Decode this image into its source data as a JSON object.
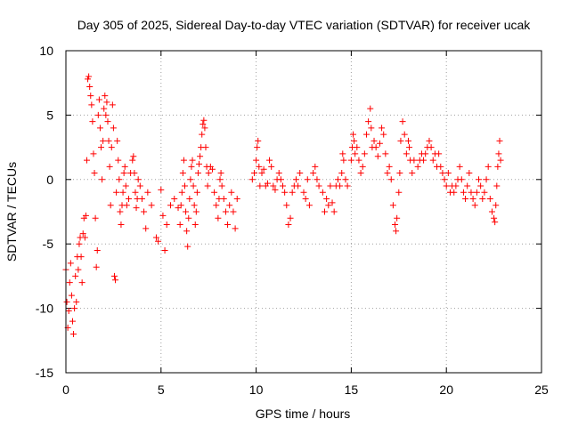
{
  "chart_data": {
    "type": "scatter",
    "title": "Day 305 of 2025, Sidereal Day-to-day VTEC variation (SDTVAR) for receiver ucak",
    "xlabel": "GPS time / hours",
    "ylabel": "SDTVAR / TECUs",
    "xlim": [
      0,
      25
    ],
    "ylim": [
      -15,
      10
    ],
    "xticks": [
      0,
      5,
      10,
      15,
      20,
      25
    ],
    "yticks": [
      -15,
      -10,
      -5,
      0,
      5,
      10
    ],
    "grid": true,
    "marker": "+",
    "color": "#ff0000",
    "series": [
      {
        "name": "SDTVAR",
        "points": [
          [
            0.0,
            -7.0
          ],
          [
            0.05,
            -9.5
          ],
          [
            0.1,
            -11.5
          ],
          [
            0.15,
            -10.2
          ],
          [
            0.2,
            -8.0
          ],
          [
            0.25,
            -6.5
          ],
          [
            0.3,
            -9.0
          ],
          [
            0.35,
            -11.0
          ],
          [
            0.4,
            -12.0
          ],
          [
            0.45,
            -10.0
          ],
          [
            0.5,
            -7.5
          ],
          [
            0.55,
            -9.5
          ],
          [
            0.6,
            -6.0
          ],
          [
            0.65,
            -7.0
          ],
          [
            0.7,
            -5.0
          ],
          [
            0.75,
            -4.5
          ],
          [
            0.8,
            -6.0
          ],
          [
            0.85,
            -8.0
          ],
          [
            0.9,
            -4.2
          ],
          [
            0.95,
            -3.0
          ],
          [
            1.0,
            -4.5
          ],
          [
            1.05,
            -2.8
          ],
          [
            1.1,
            1.5
          ],
          [
            1.15,
            7.8
          ],
          [
            1.2,
            8.0
          ],
          [
            1.25,
            7.2
          ],
          [
            1.3,
            6.5
          ],
          [
            1.35,
            5.8
          ],
          [
            1.4,
            4.5
          ],
          [
            1.45,
            2.0
          ],
          [
            1.5,
            0.5
          ],
          [
            1.55,
            -3.0
          ],
          [
            1.6,
            -6.8
          ],
          [
            1.65,
            -5.5
          ],
          [
            1.7,
            5.0
          ],
          [
            1.75,
            6.2
          ],
          [
            1.8,
            4.0
          ],
          [
            1.85,
            2.5
          ],
          [
            1.9,
            0.0
          ],
          [
            1.95,
            3.0
          ],
          [
            2.0,
            5.5
          ],
          [
            2.05,
            6.5
          ],
          [
            2.1,
            5.0
          ],
          [
            2.15,
            6.0
          ],
          [
            2.2,
            4.5
          ],
          [
            2.25,
            3.0
          ],
          [
            2.3,
            1.0
          ],
          [
            2.35,
            -2.0
          ],
          [
            2.4,
            2.5
          ],
          [
            2.45,
            5.8
          ],
          [
            2.5,
            4.0
          ],
          [
            2.55,
            -7.5
          ],
          [
            2.6,
            -7.8
          ],
          [
            2.65,
            -1.0
          ],
          [
            2.7,
            3.0
          ],
          [
            2.75,
            1.5
          ],
          [
            2.8,
            0.0
          ],
          [
            2.85,
            -2.5
          ],
          [
            2.9,
            -3.5
          ],
          [
            2.95,
            -2.0
          ],
          [
            3.0,
            -1.0
          ],
          [
            3.05,
            0.5
          ],
          [
            3.1,
            1.0
          ],
          [
            3.15,
            -0.5
          ],
          [
            3.2,
            -2.0
          ],
          [
            3.3,
            -1.5
          ],
          [
            3.4,
            0.5
          ],
          [
            3.5,
            1.5
          ],
          [
            3.55,
            1.8
          ],
          [
            3.6,
            0.5
          ],
          [
            3.65,
            -1.0
          ],
          [
            3.7,
            -2.2
          ],
          [
            3.75,
            -1.5
          ],
          [
            3.8,
            0.0
          ],
          [
            3.9,
            -0.5
          ],
          [
            4.0,
            -1.5
          ],
          [
            4.1,
            -2.5
          ],
          [
            4.2,
            -3.8
          ],
          [
            4.3,
            -1.0
          ],
          [
            4.5,
            -2.0
          ],
          [
            4.75,
            -4.5
          ],
          [
            4.85,
            -4.8
          ],
          [
            5.0,
            -0.8
          ],
          [
            5.1,
            -2.8
          ],
          [
            5.2,
            -5.5
          ],
          [
            5.3,
            -3.5
          ],
          [
            5.5,
            -2.0
          ],
          [
            5.7,
            -1.5
          ],
          [
            5.9,
            -2.2
          ],
          [
            6.0,
            -3.5
          ],
          [
            6.05,
            -2.0
          ],
          [
            6.1,
            -1.0
          ],
          [
            6.15,
            0.5
          ],
          [
            6.2,
            1.5
          ],
          [
            6.25,
            -0.5
          ],
          [
            6.3,
            -2.5
          ],
          [
            6.35,
            -4.0
          ],
          [
            6.4,
            -5.2
          ],
          [
            6.45,
            -3.0
          ],
          [
            6.5,
            -1.5
          ],
          [
            6.55,
            0.0
          ],
          [
            6.6,
            1.0
          ],
          [
            6.65,
            1.5
          ],
          [
            6.7,
            -0.5
          ],
          [
            6.75,
            -2.0
          ],
          [
            6.8,
            -3.5
          ],
          [
            6.85,
            -2.5
          ],
          [
            6.9,
            -1.0
          ],
          [
            6.95,
            0.5
          ],
          [
            7.0,
            1.2
          ],
          [
            7.05,
            1.8
          ],
          [
            7.1,
            2.5
          ],
          [
            7.15,
            3.5
          ],
          [
            7.2,
            4.3
          ],
          [
            7.25,
            4.6
          ],
          [
            7.3,
            4.0
          ],
          [
            7.35,
            2.5
          ],
          [
            7.4,
            1.0
          ],
          [
            7.45,
            -0.5
          ],
          [
            7.5,
            0.5
          ],
          [
            7.6,
            1.0
          ],
          [
            7.7,
            0.8
          ],
          [
            7.8,
            -1.0
          ],
          [
            7.9,
            -2.0
          ],
          [
            8.0,
            -3.0
          ],
          [
            8.05,
            -1.5
          ],
          [
            8.1,
            0.0
          ],
          [
            8.15,
            0.5
          ],
          [
            8.2,
            -0.5
          ],
          [
            8.3,
            -1.5
          ],
          [
            8.4,
            -2.5
          ],
          [
            8.5,
            -3.5
          ],
          [
            8.6,
            -2.0
          ],
          [
            8.7,
            -1.0
          ],
          [
            8.8,
            -2.5
          ],
          [
            8.9,
            -3.8
          ],
          [
            9.0,
            -1.5
          ],
          [
            9.8,
            0.0
          ],
          [
            9.9,
            0.5
          ],
          [
            10.0,
            1.5
          ],
          [
            10.05,
            2.5
          ],
          [
            10.1,
            3.0
          ],
          [
            10.15,
            1.0
          ],
          [
            10.2,
            -0.5
          ],
          [
            10.3,
            0.5
          ],
          [
            10.4,
            0.8
          ],
          [
            10.5,
            -0.5
          ],
          [
            10.6,
            -0.3
          ],
          [
            10.7,
            1.5
          ],
          [
            10.8,
            1.0
          ],
          [
            10.9,
            -0.5
          ],
          [
            11.0,
            -0.8
          ],
          [
            11.1,
            0.0
          ],
          [
            11.2,
            0.5
          ],
          [
            11.3,
            0.0
          ],
          [
            11.4,
            -0.5
          ],
          [
            11.5,
            -1.0
          ],
          [
            11.6,
            -2.0
          ],
          [
            11.7,
            -3.5
          ],
          [
            11.8,
            -3.0
          ],
          [
            11.9,
            -1.0
          ],
          [
            12.0,
            -0.5
          ],
          [
            12.1,
            0.0
          ],
          [
            12.2,
            -0.5
          ],
          [
            12.3,
            0.5
          ],
          [
            12.5,
            -1.0
          ],
          [
            12.6,
            -1.5
          ],
          [
            12.7,
            0.0
          ],
          [
            12.8,
            -2.0
          ],
          [
            13.0,
            0.5
          ],
          [
            13.1,
            1.0
          ],
          [
            13.2,
            0.0
          ],
          [
            13.3,
            -0.5
          ],
          [
            13.5,
            -1.0
          ],
          [
            13.6,
            -2.5
          ],
          [
            13.7,
            -1.5
          ],
          [
            13.8,
            -2.0
          ],
          [
            13.9,
            -0.5
          ],
          [
            14.0,
            -1.8
          ],
          [
            14.1,
            -2.5
          ],
          [
            14.2,
            -0.5
          ],
          [
            14.3,
            0.0
          ],
          [
            14.4,
            -0.5
          ],
          [
            14.5,
            0.5
          ],
          [
            14.55,
            2.0
          ],
          [
            14.6,
            1.5
          ],
          [
            14.7,
            0.0
          ],
          [
            14.8,
            -0.5
          ],
          [
            15.0,
            1.5
          ],
          [
            15.05,
            2.5
          ],
          [
            15.1,
            3.5
          ],
          [
            15.15,
            3.0
          ],
          [
            15.2,
            2.0
          ],
          [
            15.3,
            2.5
          ],
          [
            15.4,
            1.5
          ],
          [
            15.5,
            0.5
          ],
          [
            15.6,
            1.0
          ],
          [
            15.7,
            2.0
          ],
          [
            15.8,
            3.5
          ],
          [
            15.9,
            4.5
          ],
          [
            16.0,
            5.5
          ],
          [
            16.05,
            4.0
          ],
          [
            16.1,
            2.5
          ],
          [
            16.2,
            3.0
          ],
          [
            16.3,
            2.5
          ],
          [
            16.4,
            1.8
          ],
          [
            16.5,
            2.8
          ],
          [
            16.6,
            4.0
          ],
          [
            16.7,
            3.5
          ],
          [
            16.8,
            2.0
          ],
          [
            16.9,
            0.5
          ],
          [
            17.0,
            1.0
          ],
          [
            17.1,
            0.0
          ],
          [
            17.2,
            -2.0
          ],
          [
            17.3,
            -3.5
          ],
          [
            17.35,
            -4.0
          ],
          [
            17.4,
            -3.0
          ],
          [
            17.5,
            -1.0
          ],
          [
            17.55,
            0.5
          ],
          [
            17.6,
            3.0
          ],
          [
            17.7,
            4.5
          ],
          [
            17.8,
            3.5
          ],
          [
            17.9,
            2.0
          ],
          [
            18.0,
            3.0
          ],
          [
            18.05,
            2.5
          ],
          [
            18.1,
            1.5
          ],
          [
            18.2,
            0.5
          ],
          [
            18.3,
            1.5
          ],
          [
            18.5,
            1.0
          ],
          [
            18.6,
            1.5
          ],
          [
            18.7,
            2.0
          ],
          [
            18.8,
            1.5
          ],
          [
            18.9,
            2.0
          ],
          [
            19.0,
            2.5
          ],
          [
            19.1,
            3.0
          ],
          [
            19.2,
            2.5
          ],
          [
            19.3,
            1.5
          ],
          [
            19.4,
            2.0
          ],
          [
            19.5,
            1.0
          ],
          [
            19.6,
            2.0
          ],
          [
            19.7,
            1.0
          ],
          [
            19.8,
            0.5
          ],
          [
            19.9,
            0.0
          ],
          [
            20.0,
            -0.5
          ],
          [
            20.1,
            0.5
          ],
          [
            20.2,
            -1.0
          ],
          [
            20.3,
            -0.5
          ],
          [
            20.4,
            -1.0
          ],
          [
            20.5,
            -0.5
          ],
          [
            20.6,
            0.0
          ],
          [
            20.7,
            1.0
          ],
          [
            20.8,
            0.0
          ],
          [
            20.9,
            -1.0
          ],
          [
            21.0,
            -1.5
          ],
          [
            21.1,
            -0.5
          ],
          [
            21.2,
            0.5
          ],
          [
            21.3,
            -1.0
          ],
          [
            21.4,
            -1.5
          ],
          [
            21.5,
            -2.0
          ],
          [
            21.6,
            -1.0
          ],
          [
            21.7,
            0.0
          ],
          [
            21.8,
            -0.5
          ],
          [
            21.9,
            -1.5
          ],
          [
            22.0,
            -1.0
          ],
          [
            22.1,
            0.0
          ],
          [
            22.2,
            1.0
          ],
          [
            22.3,
            -1.5
          ],
          [
            22.4,
            -2.5
          ],
          [
            22.5,
            -3.0
          ],
          [
            22.55,
            -3.3
          ],
          [
            22.6,
            -2.0
          ],
          [
            22.65,
            -0.5
          ],
          [
            22.7,
            1.0
          ],
          [
            22.75,
            2.0
          ],
          [
            22.8,
            3.0
          ],
          [
            22.85,
            1.5
          ]
        ]
      }
    ]
  }
}
